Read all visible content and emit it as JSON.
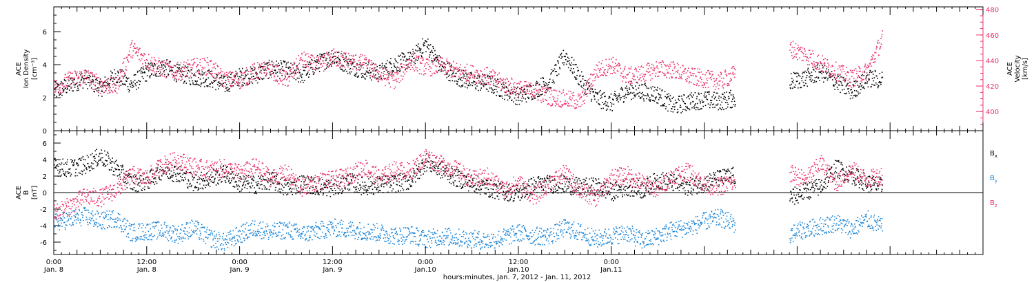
{
  "chart_data": [
    {
      "type": "scatter",
      "panel": "top",
      "ylabel_lines": [
        "ACE",
        "Ion Density",
        "[cm⁻³]"
      ],
      "ylim": [
        0,
        7.5
      ],
      "yticks": [
        0,
        2,
        4,
        6
      ],
      "ylabel_right_lines": [
        "ACE",
        "Velocity",
        "[km/s]"
      ],
      "ylim_right": [
        385,
        482
      ],
      "yticks_right": [
        400,
        420,
        440,
        460,
        480
      ],
      "right_color": "#e8336a",
      "series": [
        {
          "axis": "left",
          "color": "#000000",
          "x": [
            0,
            2,
            4,
            6,
            8,
            10,
            12,
            14,
            16,
            18,
            20,
            22,
            24,
            26,
            28,
            30,
            32,
            34,
            36,
            38,
            40,
            42,
            44,
            46,
            48,
            50,
            52,
            54,
            56,
            58,
            60,
            62,
            64,
            66,
            68,
            70,
            72,
            74,
            76,
            78,
            80,
            82,
            84,
            86,
            88
          ],
          "values": [
            2.4,
            2.8,
            3.2,
            2.6,
            3.4,
            2.8,
            3.6,
            3.9,
            3.5,
            3.3,
            3.2,
            2.8,
            3.3,
            3.4,
            3.8,
            3.7,
            3.4,
            4.1,
            4.5,
            4.0,
            3.7,
            3.5,
            4.1,
            4.3,
            5.3,
            3.9,
            3.3,
            3.0,
            2.9,
            2.5,
            2.1,
            2.5,
            3.0,
            4.6,
            3.1,
            2.0,
            1.7,
            2.5,
            2.4,
            2.2,
            1.5,
            1.8,
            1.9,
            1.8,
            2.0
          ]
        },
        {
          "axis": "right",
          "color": "#e8336a",
          "x": [
            0,
            2,
            4,
            6,
            8,
            10,
            12,
            14,
            16,
            18,
            20,
            22,
            24,
            26,
            28,
            30,
            32,
            34,
            36,
            38,
            40,
            42,
            44,
            46,
            48,
            50,
            52,
            54,
            56,
            58,
            60,
            62,
            64,
            66,
            68,
            70,
            72,
            74,
            76,
            78,
            80,
            82,
            84,
            86,
            88
          ],
          "values": [
            419,
            425,
            428,
            421,
            420,
            450,
            440,
            434,
            432,
            435,
            436,
            425,
            425,
            432,
            433,
            425,
            441,
            436,
            443,
            440,
            438,
            429,
            425,
            440,
            435,
            436,
            432,
            430,
            428,
            422,
            418,
            416,
            412,
            410,
            408,
            432,
            437,
            428,
            430,
            434,
            433,
            428,
            426,
            424,
            430
          ]
        },
        {
          "axis": "left",
          "color": "#000000",
          "x": [
            95,
            97,
            99,
            101,
            103,
            105,
            107
          ],
          "values": [
            3.0,
            3.2,
            3.6,
            3.0,
            2.4,
            3.2,
            3.1
          ]
        },
        {
          "axis": "right",
          "color": "#e8336a",
          "x": [
            95,
            97,
            99,
            101,
            103,
            105,
            107
          ],
          "values": [
            450,
            445,
            438,
            432,
            426,
            432,
            458
          ]
        }
      ]
    },
    {
      "type": "scatter",
      "panel": "bottom",
      "ylabel_lines": [
        "ACE",
        "B",
        "[nT]"
      ],
      "ylim": [
        -7.5,
        7.5
      ],
      "yticks": [
        -6,
        -4,
        -2,
        0,
        2,
        4,
        6
      ],
      "zero_line": true,
      "legend": [
        "Bx",
        "By",
        "Bz"
      ],
      "legend_colors": [
        "#000000",
        "#1a84d6",
        "#e8336a"
      ],
      "series": [
        {
          "name": "Bx",
          "color": "#000000",
          "x": [
            0,
            2,
            4,
            6,
            8,
            10,
            12,
            14,
            16,
            18,
            20,
            22,
            24,
            26,
            28,
            30,
            32,
            34,
            36,
            38,
            40,
            42,
            44,
            46,
            48,
            50,
            52,
            54,
            56,
            58,
            60,
            62,
            64,
            66,
            68,
            70,
            72,
            74,
            76,
            78,
            80,
            82,
            84,
            86,
            88
          ],
          "values": [
            3.2,
            3.0,
            3.4,
            4.5,
            3.0,
            1.2,
            1.4,
            2.8,
            2.4,
            1.3,
            1.7,
            2.4,
            1.2,
            1.0,
            1.6,
            0.6,
            1.2,
            0.8,
            0.6,
            1.4,
            0.8,
            1.0,
            1.2,
            1.5,
            3.8,
            2.8,
            1.8,
            1.2,
            0.6,
            0.2,
            0.0,
            1.0,
            1.1,
            1.0,
            0.7,
            0.8,
            0.1,
            0.8,
            0.4,
            1.6,
            1.2,
            0.8,
            1.2,
            1.8,
            2.1
          ]
        },
        {
          "name": "By",
          "color": "#1a84d6",
          "x": [
            0,
            2,
            4,
            6,
            8,
            10,
            12,
            14,
            16,
            18,
            20,
            22,
            24,
            26,
            28,
            30,
            32,
            34,
            36,
            38,
            40,
            42,
            44,
            46,
            48,
            50,
            52,
            54,
            56,
            58,
            60,
            62,
            64,
            66,
            68,
            70,
            72,
            74,
            76,
            78,
            80,
            82,
            84,
            86,
            88
          ],
          "values": [
            -3.6,
            -3.2,
            -2.8,
            -3.4,
            -3.0,
            -4.8,
            -4.6,
            -4.5,
            -5.0,
            -4.2,
            -5.4,
            -6.0,
            -5.0,
            -4.2,
            -4.8,
            -4.4,
            -5.0,
            -4.6,
            -4.2,
            -4.4,
            -4.6,
            -4.8,
            -5.2,
            -5.0,
            -5.6,
            -5.2,
            -5.4,
            -5.6,
            -5.8,
            -5.4,
            -4.8,
            -5.2,
            -5.2,
            -4.2,
            -4.8,
            -5.6,
            -5.2,
            -4.8,
            -5.8,
            -5.2,
            -4.4,
            -4.2,
            -3.4,
            -3.0,
            -3.8
          ]
        },
        {
          "name": "Bz",
          "color": "#e8336a",
          "x": [
            0,
            2,
            4,
            6,
            8,
            10,
            12,
            14,
            16,
            18,
            20,
            22,
            24,
            26,
            28,
            30,
            32,
            34,
            36,
            38,
            40,
            42,
            44,
            46,
            48,
            50,
            52,
            54,
            56,
            58,
            60,
            62,
            64,
            66,
            68,
            70,
            72,
            74,
            76,
            78,
            80,
            82,
            84,
            86,
            88
          ],
          "values": [
            -2.4,
            -1.6,
            -0.4,
            -0.6,
            0.4,
            2.2,
            1.8,
            3.4,
            4.0,
            3.2,
            2.8,
            3.0,
            2.4,
            3.2,
            1.8,
            2.4,
            0.6,
            1.4,
            1.6,
            2.0,
            3.2,
            1.8,
            2.8,
            2.6,
            4.4,
            3.4,
            2.8,
            1.6,
            2.0,
            0.4,
            1.2,
            -0.4,
            1.2,
            2.4,
            0.2,
            -0.6,
            1.8,
            2.2,
            1.2,
            0.4,
            2.2,
            2.6,
            1.0,
            0.8,
            1.4
          ]
        },
        {
          "name": "Bx",
          "color": "#000000",
          "x": [
            95,
            97,
            99,
            101,
            103,
            105,
            107
          ],
          "values": [
            -0.6,
            0.2,
            0.8,
            3.0,
            2.2,
            1.2,
            0.8
          ]
        },
        {
          "name": "By",
          "color": "#1a84d6",
          "x": [
            95,
            97,
            99,
            101,
            103,
            105,
            107
          ],
          "values": [
            -5.0,
            -4.4,
            -4.0,
            -3.6,
            -4.4,
            -3.2,
            -4.2
          ]
        },
        {
          "name": "Bz",
          "color": "#e8336a",
          "x": [
            95,
            97,
            99,
            101,
            103,
            105,
            107
          ],
          "values": [
            2.4,
            1.6,
            3.6,
            1.2,
            2.8,
            1.6,
            2.2
          ]
        }
      ]
    }
  ],
  "x_axis": {
    "unit": "hours since Jan. 8 00:00",
    "xlim": [
      0,
      120
    ],
    "ticks": [
      {
        "x": 0,
        "time": "0:00",
        "date": "Jan. 8"
      },
      {
        "x": 12,
        "time": "12:00",
        "date": "Jan. 8"
      },
      {
        "x": 24,
        "time": "0:00",
        "date": "Jan. 9"
      },
      {
        "x": 36,
        "time": "12:00",
        "date": "Jan. 9"
      },
      {
        "x": 48,
        "time": "0:00",
        "date": "Jan.10"
      },
      {
        "x": 60,
        "time": "12:00",
        "date": "Jan.10"
      },
      {
        "x": 72,
        "time": "0:00",
        "date": "Jan.11"
      }
    ],
    "label": "hours:minutes, Jan.  7, 2012 - Jan. 11, 2012"
  }
}
